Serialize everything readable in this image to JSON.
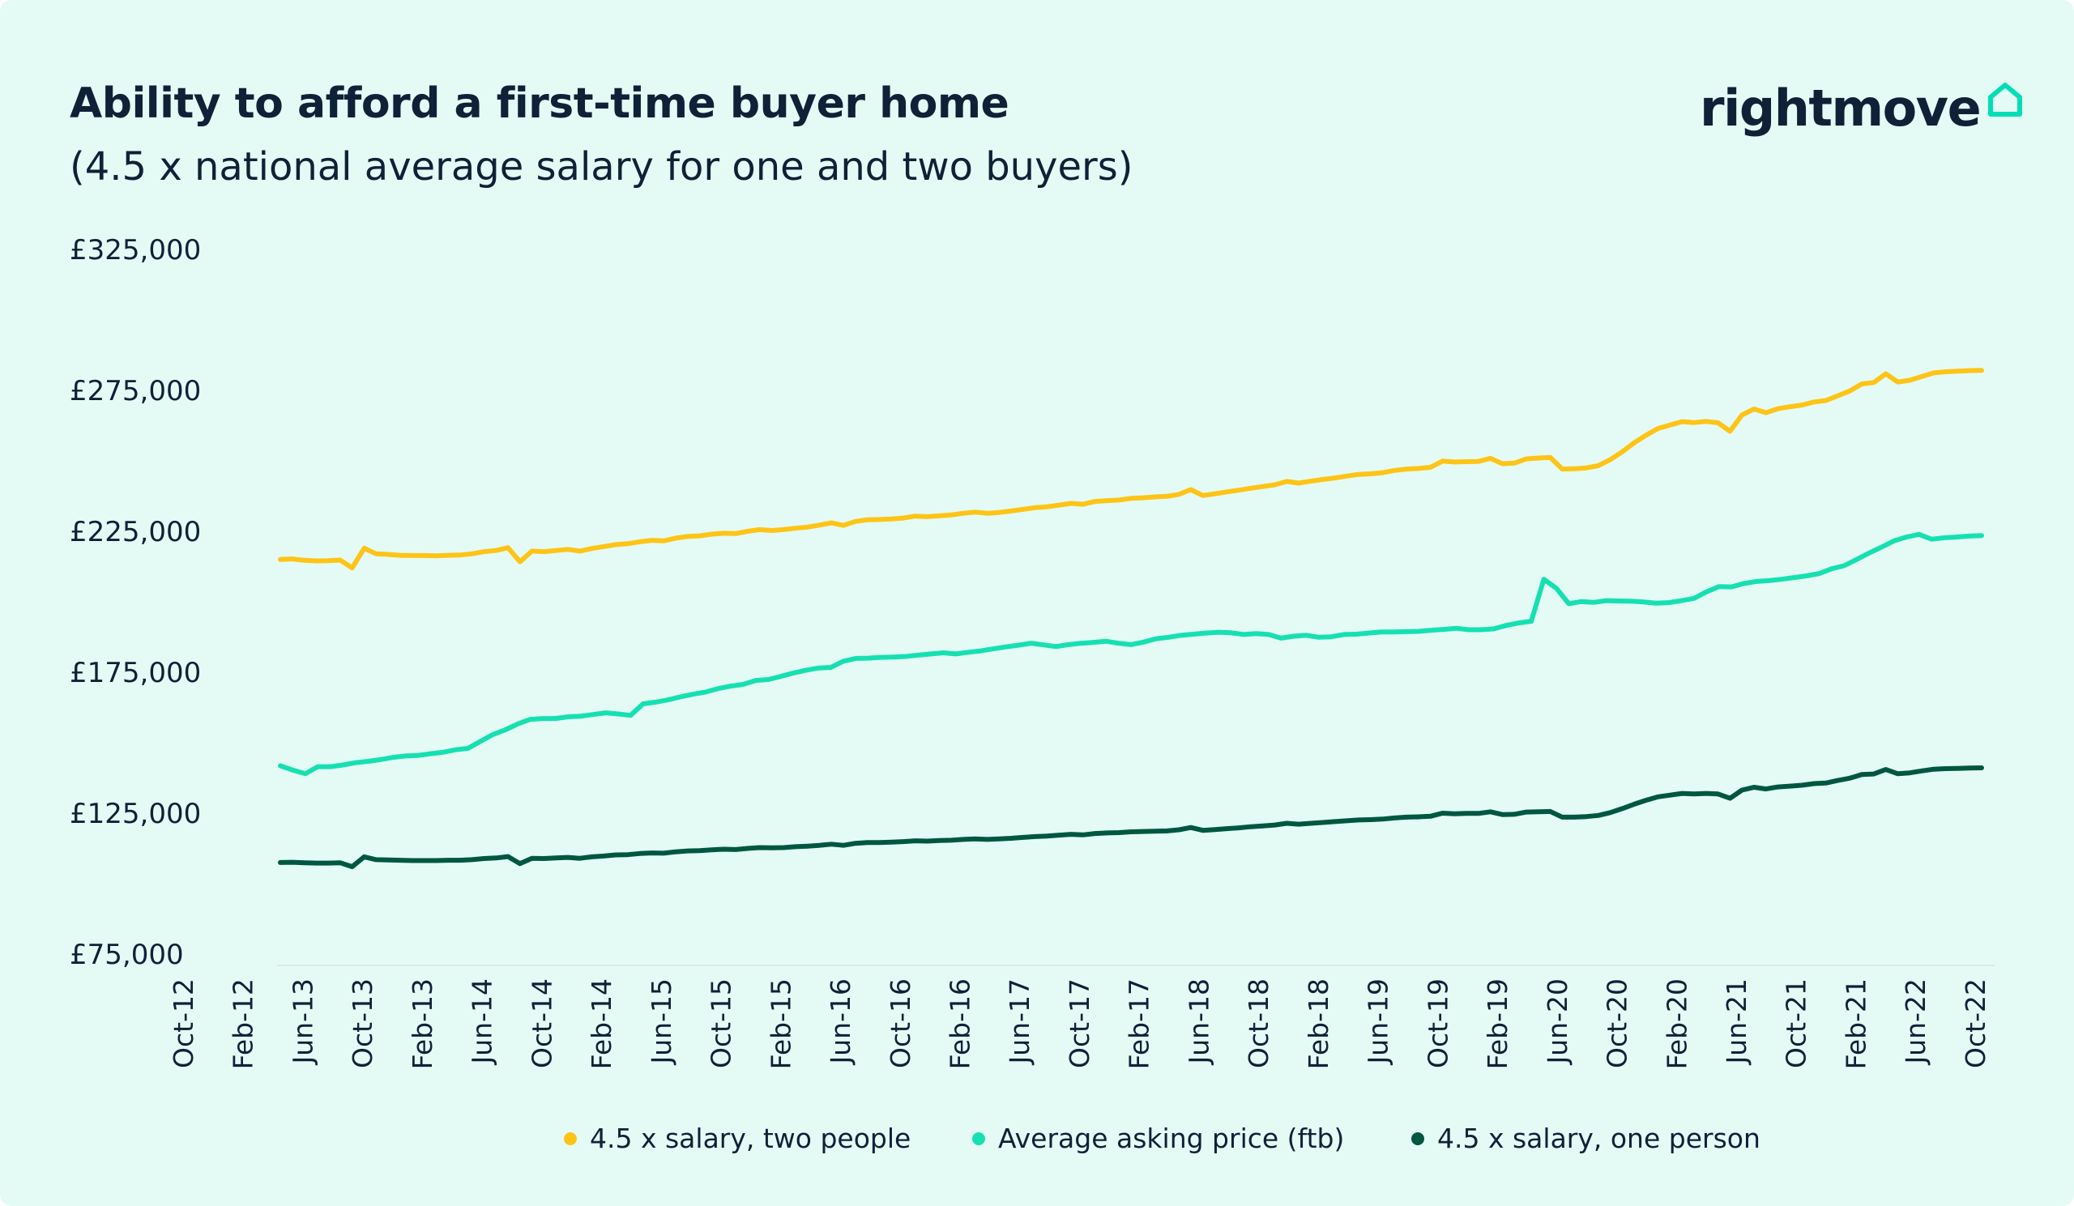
{
  "header": {
    "title": "Ability to afford a first-time buyer home",
    "subtitle": "(4.5 x national average salary for one and two buyers)"
  },
  "brand": {
    "name": "rightmove",
    "icon": "house-outline-icon",
    "accent_color": "#00deb6",
    "text_color": "#0d2237"
  },
  "colors": {
    "background": "#e4fbf5",
    "two_people": "#fdc417",
    "asking_price": "#16e0b1",
    "one_person": "#00573f"
  },
  "chart_data": {
    "type": "line",
    "title": "Ability to afford a first-time buyer home",
    "subtitle": "(4.5 x national average salary for one and two buyers)",
    "ylim": [
      75000,
      325000
    ],
    "yticks": [
      "£325,000",
      "£275,000",
      "£225,000",
      "£175,000",
      "£125,000",
      "£75,000"
    ],
    "x_labels": [
      "Oct-12",
      "Feb-12",
      "Jun-13",
      "Oct-13",
      "Feb-13",
      "Jun-14",
      "Oct-14",
      "Feb-14",
      "Jun-15",
      "Oct-15",
      "Feb-15",
      "Jun-16",
      "Oct-16",
      "Feb-16",
      "Jun-17",
      "Oct-17",
      "Feb-17",
      "Jun-18",
      "Oct-18",
      "Feb-18",
      "Jun-19",
      "Oct-19",
      "Feb-19",
      "Jun-20",
      "Oct-20",
      "Feb-20",
      "Jun-21",
      "Oct-21",
      "Feb-21",
      "Jun-22",
      "Oct-22"
    ],
    "grid": false,
    "legend_position": "bottom",
    "series": [
      {
        "name": "4.5 x salary, two people",
        "color": "#fdc417",
        "values": [
          215000,
          215200,
          214700,
          214500,
          214600,
          214800,
          212000,
          219000,
          217000,
          216800,
          216500,
          216400,
          216400,
          216300,
          216500,
          216600,
          217000,
          217800,
          218200,
          219200,
          214200,
          218000,
          217800,
          218200,
          218600,
          218000,
          218900,
          219600,
          220300,
          220600,
          221300,
          221800,
          221600,
          222600,
          223200,
          223400,
          224000,
          224300,
          224200,
          225000,
          225600,
          225300,
          225600,
          226100,
          226500,
          227200,
          228000,
          227100,
          228500,
          229100,
          229200,
          229400,
          229700,
          230400,
          230200,
          230500,
          230800,
          231400,
          231800,
          231400,
          231700,
          232200,
          232800,
          233400,
          233700,
          234300,
          234900,
          234600,
          235600,
          235900,
          236100,
          236700,
          236900,
          237200,
          237400,
          238100,
          239800,
          237700,
          238300,
          239000,
          239600,
          240300,
          240900,
          241500,
          242700,
          242100,
          242800,
          243400,
          243900,
          244600,
          245200,
          245400,
          245800,
          246600,
          247100,
          247300,
          247700,
          249900,
          249600,
          249700,
          249800,
          250900,
          249000,
          249200,
          250700,
          251000,
          251200,
          247100,
          247200,
          247500,
          248300,
          250400,
          253200,
          256400,
          259100,
          261500,
          262700,
          263900,
          263600,
          264000,
          263500,
          260500,
          266300,
          268400,
          267100,
          268500,
          269200,
          269800,
          270900,
          271400,
          273100,
          274800,
          277300,
          277800,
          280900,
          278000,
          278600,
          279900,
          281200,
          281600,
          281800,
          282000,
          282100
        ]
      },
      {
        "name": "Average asking price (ftb)",
        "color": "#16e0b1",
        "values": [
          141800,
          140300,
          139000,
          141500,
          141500,
          142100,
          142900,
          143400,
          144000,
          144800,
          145300,
          145500,
          146100,
          146600,
          147500,
          148000,
          150500,
          152900,
          154600,
          156700,
          158300,
          158600,
          158600,
          159200,
          159400,
          160000,
          160600,
          160200,
          159700,
          163800,
          164400,
          165200,
          166300,
          167200,
          168000,
          169200,
          170100,
          170700,
          172100,
          172400,
          173500,
          174700,
          175700,
          176500,
          176700,
          178900,
          179900,
          180000,
          180300,
          180400,
          180600,
          181100,
          181500,
          181900,
          181500,
          182100,
          182600,
          183300,
          184000,
          184600,
          185300,
          184700,
          184100,
          184800,
          185300,
          185600,
          186000,
          185300,
          184800,
          185700,
          186900,
          187400,
          188100,
          188500,
          188900,
          189200,
          189000,
          188400,
          188700,
          188400,
          187100,
          187800,
          188100,
          187400,
          187600,
          188400,
          188500,
          188900,
          189300,
          189300,
          189400,
          189500,
          189900,
          190200,
          190600,
          190100,
          190100,
          190400,
          191600,
          192500,
          193100,
          208000,
          204800,
          199300,
          200100,
          199800,
          200400,
          200300,
          200200,
          199900,
          199500,
          199700,
          200400,
          201200,
          203500,
          205400,
          205300,
          206500,
          207200,
          207500,
          208000,
          208600,
          209200,
          210000,
          211700,
          212800,
          215000,
          217300,
          219400,
          221600,
          223000,
          223900,
          222200,
          222700,
          223000,
          223300,
          223500
        ]
      },
      {
        "name": "4.5 x salary, one person",
        "color": "#00573f",
        "values": [
          107500,
          107600,
          107400,
          107300,
          107300,
          107400,
          106000,
          109500,
          108500,
          108400,
          108300,
          108200,
          108200,
          108200,
          108300,
          108300,
          108500,
          108900,
          109100,
          109600,
          107100,
          109000,
          108900,
          109100,
          109300,
          109000,
          109500,
          109800,
          110200,
          110300,
          110700,
          110900,
          110800,
          111300,
          111600,
          111700,
          112000,
          112200,
          112100,
          112500,
          112800,
          112700,
          112800,
          113100,
          113300,
          113600,
          114000,
          113600,
          114300,
          114600,
          114600,
          114700,
          114900,
          115200,
          115100,
          115300,
          115400,
          115700,
          115900,
          115700,
          115900,
          116100,
          116400,
          116700,
          116900,
          117200,
          117500,
          117300,
          117800,
          118000,
          118100,
          118400,
          118500,
          118600,
          118700,
          119100,
          119900,
          118900,
          119200,
          119500,
          119800,
          120200,
          120500,
          120800,
          121400,
          121100,
          121400,
          121700,
          122000,
          122300,
          122600,
          122700,
          122900,
          123300,
          123600,
          123700,
          123900,
          125000,
          124800,
          124900,
          124900,
          125500,
          124500,
          124600,
          125400,
          125500,
          125600,
          123600,
          123600,
          123800,
          124200,
          125200,
          126600,
          128200,
          129600,
          130800,
          131400,
          132000,
          131800,
          132000,
          131800,
          130300,
          133200,
          134200,
          133600,
          134300,
          134600,
          134900,
          135500,
          135700,
          136600,
          137400,
          138700,
          138900,
          140500,
          139000,
          139300,
          140000,
          140600,
          140800,
          140900,
          141000,
          141100
        ]
      }
    ]
  }
}
